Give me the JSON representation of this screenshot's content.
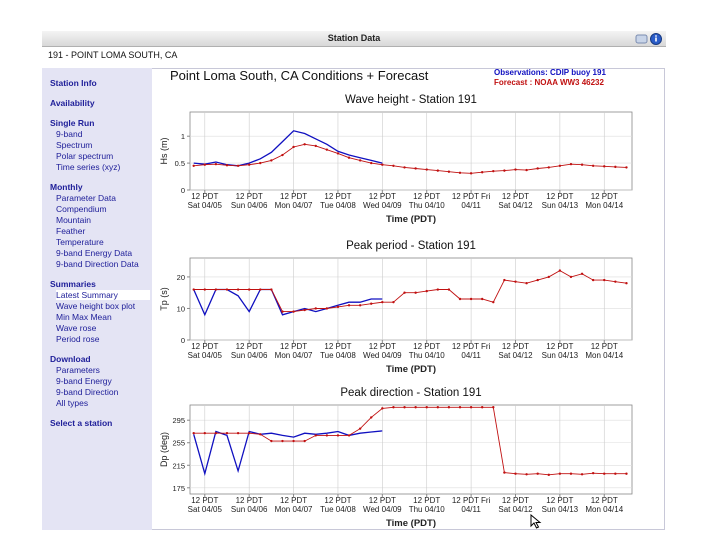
{
  "window_title": "Station Data",
  "station": "191 - POINT LOMA SOUTH, CA",
  "sidebar": [
    {
      "title": "Station Info",
      "items": []
    },
    {
      "title": "Availability",
      "items": []
    },
    {
      "title": "Single Run",
      "items": [
        "9-band",
        "Spectrum",
        "Polar spectrum",
        "Time series (xyz)"
      ]
    },
    {
      "title": "Monthly",
      "items": [
        "Parameter Data",
        "Compendium",
        "Mountain",
        "Feather",
        "Temperature",
        "9-band Energy Data",
        "9-band Direction Data"
      ]
    },
    {
      "title": "Summaries",
      "items": [
        "Latest Summary",
        "Wave height box plot",
        "Min Max Mean",
        "Wave rose",
        "Period rose"
      ]
    },
    {
      "title": "Download",
      "items": [
        "Parameters",
        "9-band Energy",
        "9-band Direction",
        "All types"
      ]
    },
    {
      "title": "Select a station",
      "items": []
    }
  ],
  "selected": [
    4,
    0
  ],
  "heading": "Point Loma South, CA Conditions + Forecast",
  "legend": [
    {
      "label": "Observations: CDIP buoy 191",
      "color": "#1010c0"
    },
    {
      "label": "Forecast : NOAA WW3 46232",
      "color": "#c01010"
    }
  ],
  "chart_data": [
    {
      "type": "line",
      "title": "Wave height - Station 191",
      "ylabel": "Hs (m)",
      "xlabel": "Time (PDT)",
      "grid": true,
      "xlim": [
        "04/05 04",
        "04/15 03"
      ],
      "xticks": [
        {
          "value": "04/05 12",
          "label": "12 PDT Sat 04/05"
        },
        {
          "value": "04/06 12",
          "label": "12 PDT Sun 04/06"
        },
        {
          "value": "04/07 12",
          "label": "12 PDT Mon 04/07"
        },
        {
          "value": "04/08 12",
          "label": "12 PDT Tue 04/08"
        },
        {
          "value": "04/09 12",
          "label": "12 PDT Wed 04/09"
        },
        {
          "value": "04/10 12",
          "label": "12 PDT Thu 04/10"
        },
        {
          "value": "04/11 12",
          "label": "12 PDT Fri 04/11"
        },
        {
          "value": "04/12 12",
          "label": "12 PDT Sat 04/12"
        },
        {
          "value": "04/13 12",
          "label": "12 PDT Sun 04/13"
        },
        {
          "value": "04/14 12",
          "label": "12 PDT Mon 04/14"
        }
      ],
      "ylim": [
        0,
        1.45
      ],
      "yticks": [
        0,
        0.5,
        1
      ],
      "x": [
        "04/05 06",
        "04/05 12",
        "04/05 18",
        "04/06 00",
        "04/06 06",
        "04/06 12",
        "04/06 18",
        "04/07 00",
        "04/07 06",
        "04/07 12",
        "04/07 18",
        "04/08 00",
        "04/08 06",
        "04/08 12",
        "04/08 18",
        "04/09 00",
        "04/09 06",
        "04/09 12",
        "04/09 18",
        "04/10 00",
        "04/10 06",
        "04/10 12",
        "04/10 18",
        "04/11 00",
        "04/11 06",
        "04/11 12",
        "04/11 18",
        "04/12 00",
        "04/12 06",
        "04/12 12",
        "04/12 18",
        "04/13 00",
        "04/13 06",
        "04/13 12",
        "04/13 18",
        "04/14 00",
        "04/14 06",
        "04/14 12",
        "04/14 18",
        "04/15 00"
      ],
      "series": [
        {
          "color": "#1010c0",
          "markers": false,
          "values": [
            0.5,
            0.48,
            0.52,
            0.47,
            0.45,
            0.5,
            0.58,
            0.7,
            0.9,
            1.1,
            1.05,
            0.95,
            0.85,
            0.72,
            0.65,
            0.6,
            0.55,
            0.5,
            null,
            null,
            null,
            null,
            null,
            null,
            null,
            null,
            null,
            null,
            null,
            null,
            null,
            null,
            null,
            null,
            null,
            null,
            null,
            null,
            null,
            null
          ]
        },
        {
          "color": "#c01010",
          "markers": true,
          "values": [
            0.45,
            0.47,
            0.48,
            0.46,
            0.45,
            0.47,
            0.5,
            0.55,
            0.65,
            0.8,
            0.85,
            0.82,
            0.75,
            0.68,
            0.6,
            0.55,
            0.5,
            0.47,
            0.45,
            0.42,
            0.4,
            0.38,
            0.36,
            0.34,
            0.32,
            0.31,
            0.33,
            0.35,
            0.36,
            0.38,
            0.37,
            0.4,
            0.42,
            0.45,
            0.48,
            0.47,
            0.45,
            0.44,
            0.43,
            0.42
          ]
        }
      ]
    },
    {
      "type": "line",
      "title": "Peak period - Station 191",
      "ylabel": "Tp (s)",
      "xlabel": "Time (PDT)",
      "grid": true,
      "xlim": [
        "04/05 04",
        "04/15 03"
      ],
      "xticks": [
        {
          "value": "04/05 12",
          "label": "12 PDT Sat 04/05"
        },
        {
          "value": "04/06 12",
          "label": "12 PDT Sun 04/06"
        },
        {
          "value": "04/07 12",
          "label": "12 PDT Mon 04/07"
        },
        {
          "value": "04/08 12",
          "label": "12 PDT Tue 04/08"
        },
        {
          "value": "04/09 12",
          "label": "12 PDT Wed 04/09"
        },
        {
          "value": "04/10 12",
          "label": "12 PDT Thu 04/10"
        },
        {
          "value": "04/11 12",
          "label": "12 PDT Fri 04/11"
        },
        {
          "value": "04/12 12",
          "label": "12 PDT Sat 04/12"
        },
        {
          "value": "04/13 12",
          "label": "12 PDT Sun 04/13"
        },
        {
          "value": "04/14 12",
          "label": "12 PDT Mon 04/14"
        }
      ],
      "ylim": [
        0,
        26
      ],
      "yticks": [
        0,
        10,
        20
      ],
      "x": [
        "04/05 06",
        "04/05 12",
        "04/05 18",
        "04/06 00",
        "04/06 06",
        "04/06 12",
        "04/06 18",
        "04/07 00",
        "04/07 06",
        "04/07 12",
        "04/07 18",
        "04/08 00",
        "04/08 06",
        "04/08 12",
        "04/08 18",
        "04/09 00",
        "04/09 06",
        "04/09 12",
        "04/09 18",
        "04/10 00",
        "04/10 06",
        "04/10 12",
        "04/10 18",
        "04/11 00",
        "04/11 06",
        "04/11 12",
        "04/11 18",
        "04/12 00",
        "04/12 06",
        "04/12 12",
        "04/12 18",
        "04/13 00",
        "04/13 06",
        "04/13 12",
        "04/13 18",
        "04/14 00",
        "04/14 06",
        "04/14 12",
        "04/14 18",
        "04/15 00"
      ],
      "series": [
        {
          "color": "#1010c0",
          "markers": false,
          "values": [
            16,
            8,
            16,
            16,
            14,
            9,
            16,
            16,
            8,
            9,
            10,
            9,
            10,
            11,
            12,
            12,
            13,
            13,
            null,
            null,
            null,
            null,
            null,
            null,
            null,
            null,
            null,
            null,
            null,
            null,
            null,
            null,
            null,
            null,
            null,
            null,
            null,
            null,
            null,
            null
          ]
        },
        {
          "color": "#c01010",
          "markers": true,
          "values": [
            16,
            16,
            16,
            16,
            16,
            16,
            16,
            16,
            9,
            9,
            9.5,
            10,
            10,
            10.5,
            11,
            11,
            11.5,
            12,
            12,
            15,
            15,
            15.5,
            16,
            16,
            13,
            13,
            13,
            12,
            19,
            18.5,
            18,
            19,
            20,
            22,
            20,
            21,
            19,
            19,
            18.5,
            18
          ]
        }
      ]
    },
    {
      "type": "line",
      "title": "Peak direction - Station 191",
      "ylabel": "Dp (deg)",
      "xlabel": "Time (PDT)",
      "grid": true,
      "xlim": [
        "04/05 04",
        "04/15 03"
      ],
      "xticks": [
        {
          "value": "04/05 12",
          "label": "12 PDT Sat 04/05"
        },
        {
          "value": "04/06 12",
          "label": "12 PDT Sun 04/06"
        },
        {
          "value": "04/07 12",
          "label": "12 PDT Mon 04/07"
        },
        {
          "value": "04/08 12",
          "label": "12 PDT Tue 04/08"
        },
        {
          "value": "04/09 12",
          "label": "12 PDT Wed 04/09"
        },
        {
          "value": "04/10 12",
          "label": "12 PDT Thu 04/10"
        },
        {
          "value": "04/11 12",
          "label": "12 PDT Fri 04/11"
        },
        {
          "value": "04/12 12",
          "label": "12 PDT Sat 04/12"
        },
        {
          "value": "04/13 12",
          "label": "12 PDT Sun 04/13"
        },
        {
          "value": "04/14 12",
          "label": "12 PDT Mon 04/14"
        }
      ],
      "ylim": [
        164,
        322
      ],
      "yticks": [
        175,
        215,
        255,
        295
      ],
      "x": [
        "04/05 06",
        "04/05 12",
        "04/05 18",
        "04/06 00",
        "04/06 06",
        "04/06 12",
        "04/06 18",
        "04/07 00",
        "04/07 06",
        "04/07 12",
        "04/07 18",
        "04/08 00",
        "04/08 06",
        "04/08 12",
        "04/08 18",
        "04/09 00",
        "04/09 06",
        "04/09 12",
        "04/09 18",
        "04/10 00",
        "04/10 06",
        "04/10 12",
        "04/10 18",
        "04/11 00",
        "04/11 06",
        "04/11 12",
        "04/11 18",
        "04/12 00",
        "04/12 06",
        "04/12 12",
        "04/12 18",
        "04/13 00",
        "04/13 06",
        "04/13 12",
        "04/13 18",
        "04/14 00",
        "04/14 06",
        "04/14 12",
        "04/14 18",
        "04/15 00"
      ],
      "series": [
        {
          "color": "#1010c0",
          "markers": false,
          "values": [
            270,
            200,
            275,
            268,
            205,
            275,
            270,
            272,
            268,
            265,
            272,
            270,
            272,
            275,
            268,
            272,
            274,
            276,
            null,
            null,
            null,
            null,
            null,
            null,
            null,
            null,
            null,
            null,
            null,
            null,
            null,
            null,
            null,
            null,
            null,
            null,
            null,
            null,
            null,
            null
          ]
        },
        {
          "color": "#c01010",
          "markers": true,
          "values": [
            272,
            272,
            272,
            272,
            272,
            272,
            270,
            258,
            258,
            258,
            258,
            268,
            268,
            268,
            268,
            280,
            300,
            316,
            318,
            318,
            318,
            318,
            318,
            318,
            318,
            318,
            318,
            318,
            202,
            200,
            199,
            200,
            198,
            200,
            200,
            199,
            201,
            200,
            200,
            200
          ]
        }
      ]
    }
  ]
}
